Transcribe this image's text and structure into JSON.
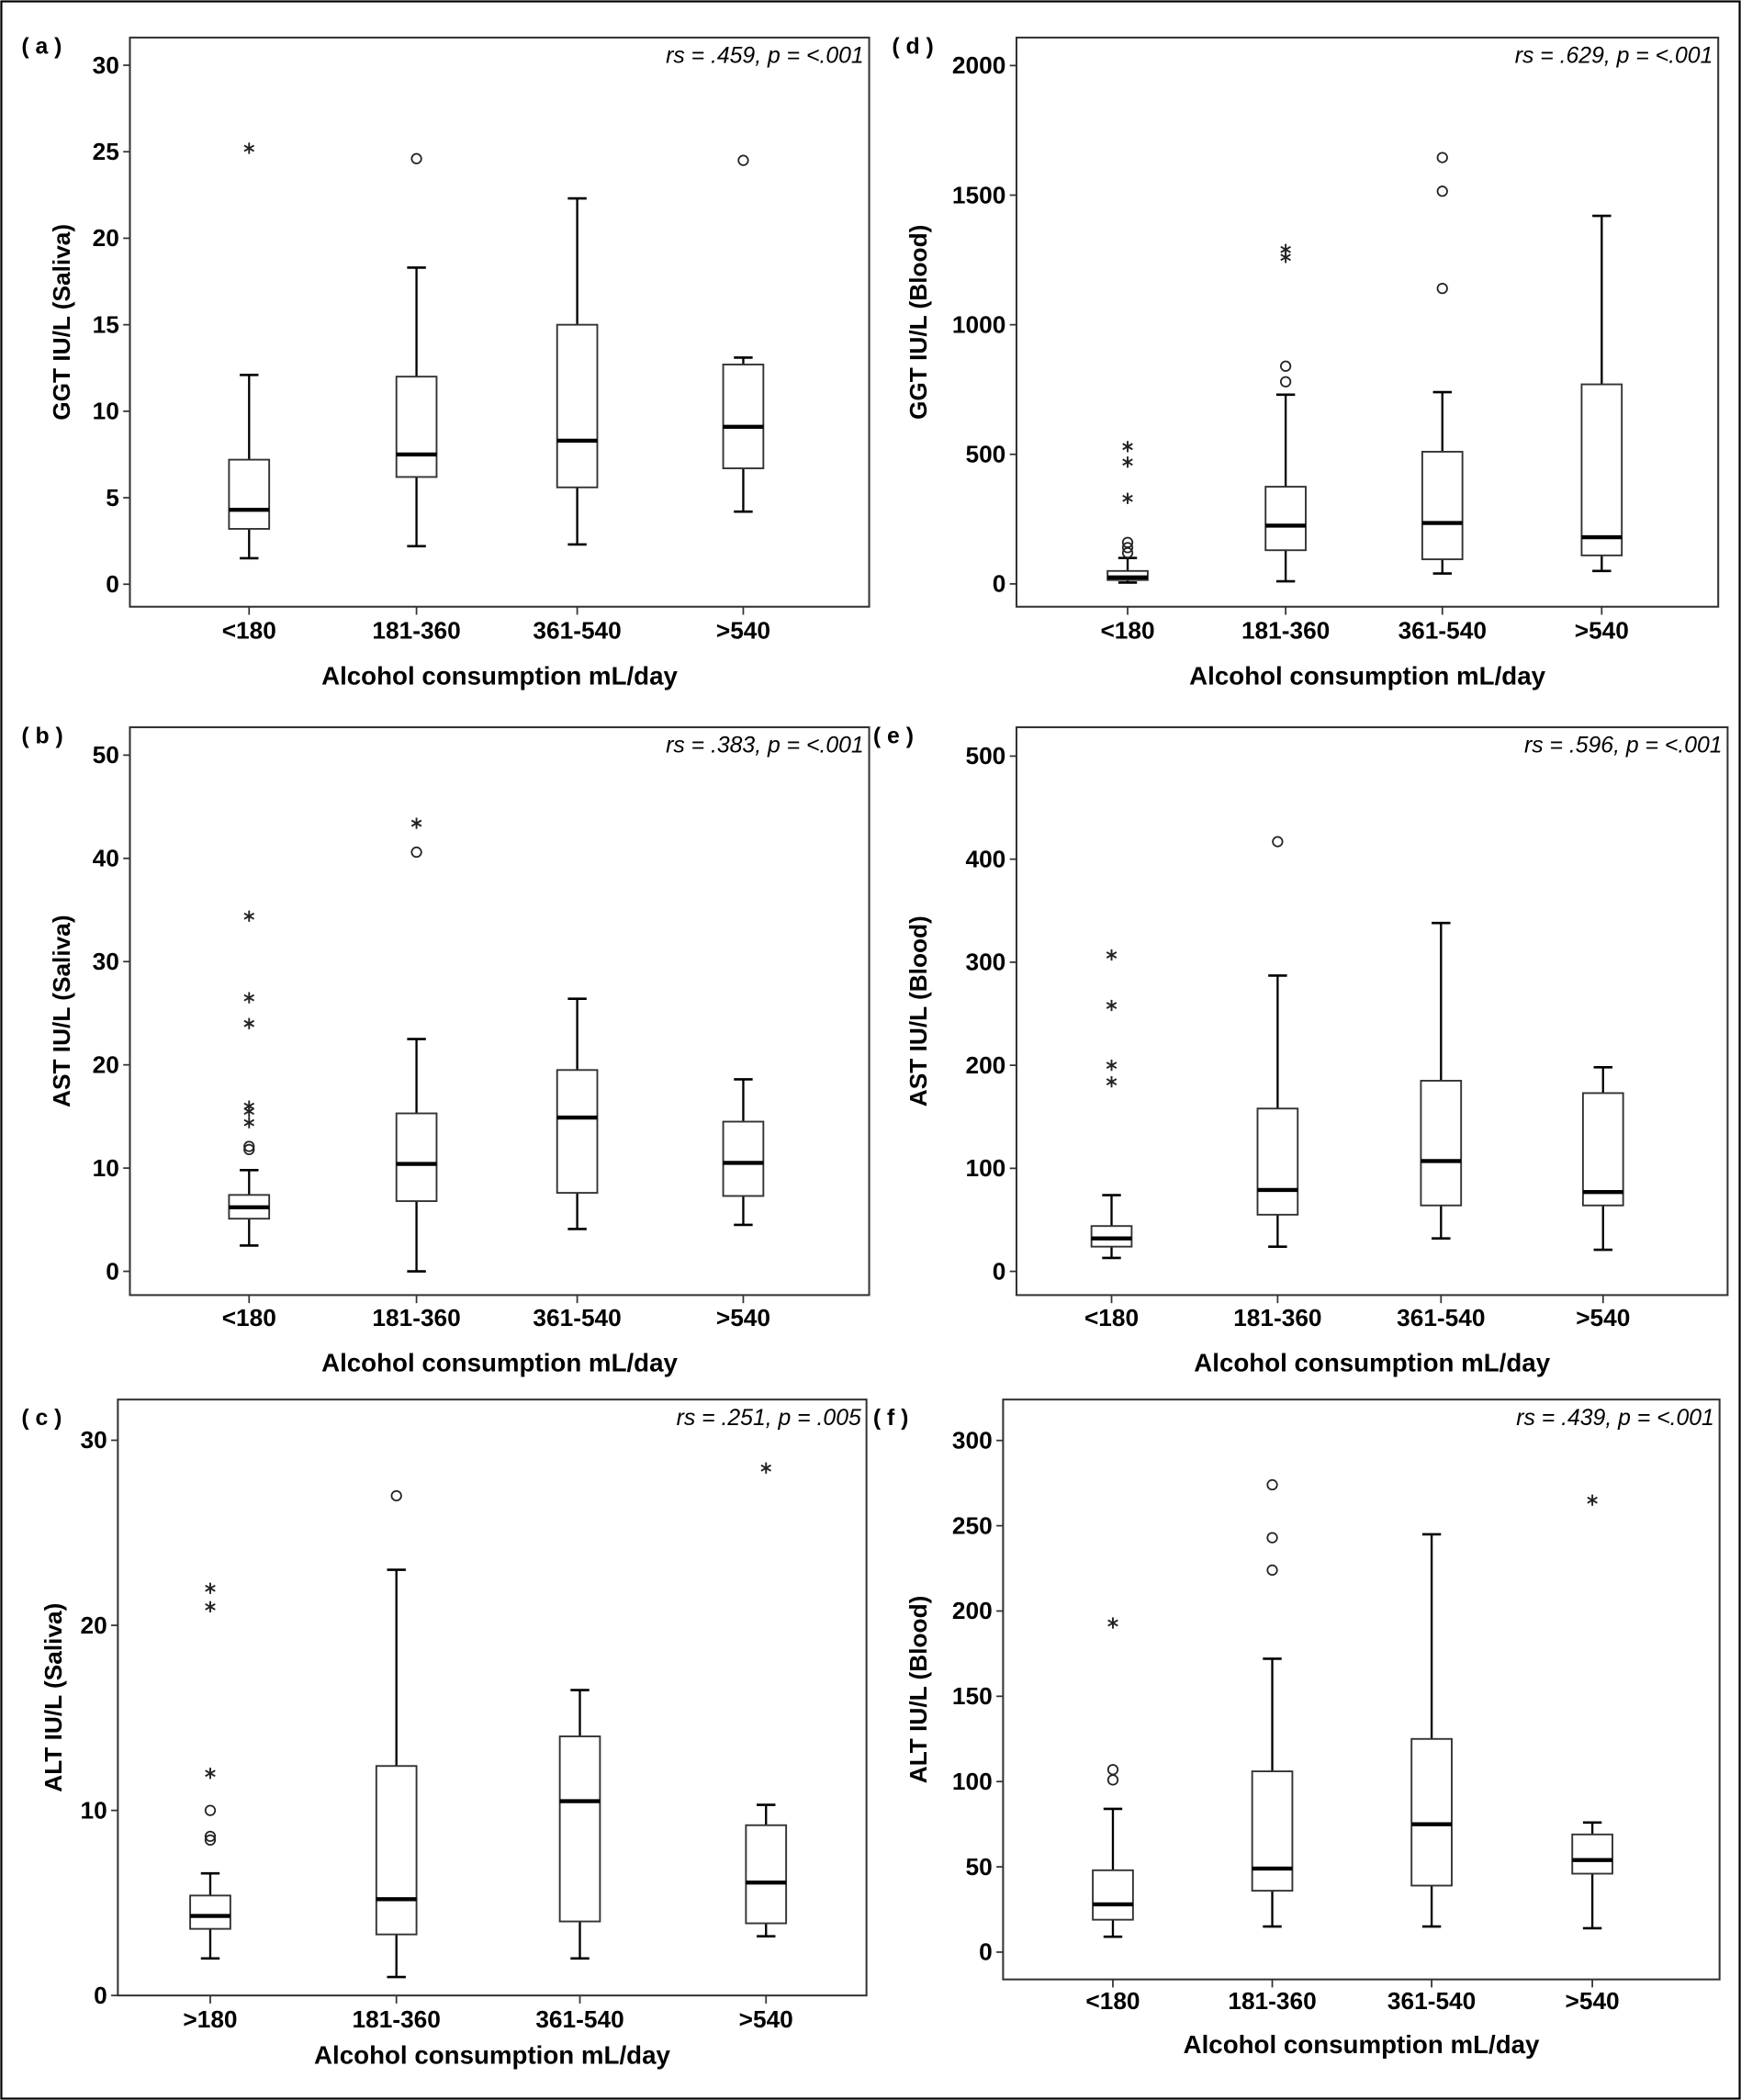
{
  "chart_data": [
    {
      "type": "box",
      "panel_label": "( a )",
      "annotation": "rs = .459, p = <.001",
      "ylabel": "GGT IU/L (Saliva)",
      "xlabel": "Alcohol consumption mL/day",
      "categories": [
        "<180",
        "181-360",
        "361-540",
        ">540"
      ],
      "ylim": [
        -1.3,
        31.6
      ],
      "yticks": [
        0,
        5,
        10,
        15,
        20,
        25,
        30
      ],
      "boxes": [
        {
          "whisker_low": 1.5,
          "q1": 3.2,
          "median": 4.3,
          "q3": 7.2,
          "whisker_high": 12.1,
          "outliers": [],
          "extremes": [
            25.2
          ]
        },
        {
          "whisker_low": 2.2,
          "q1": 6.2,
          "median": 7.5,
          "q3": 12.0,
          "whisker_high": 18.3,
          "outliers": [
            24.6
          ],
          "extremes": []
        },
        {
          "whisker_low": 2.3,
          "q1": 5.6,
          "median": 8.3,
          "q3": 15.0,
          "whisker_high": 22.3,
          "outliers": [],
          "extremes": []
        },
        {
          "whisker_low": 4.2,
          "q1": 6.7,
          "median": 9.1,
          "q3": 12.7,
          "whisker_high": 13.1,
          "outliers": [
            24.5
          ],
          "extremes": []
        }
      ]
    },
    {
      "type": "box",
      "panel_label": "( b )",
      "annotation": "rs = .383, p = <.001",
      "ylabel": "AST IU/L (Saliva)",
      "xlabel": "Alcohol consumption mL/day",
      "categories": [
        "<180",
        "181-360",
        "361-540",
        ">540"
      ],
      "ylim": [
        -2.3,
        52.7
      ],
      "yticks": [
        0,
        10,
        20,
        30,
        40,
        50
      ],
      "boxes": [
        {
          "whisker_low": 2.5,
          "q1": 5.1,
          "median": 6.2,
          "q3": 7.4,
          "whisker_high": 9.8,
          "outliers": [
            11.8,
            12.1
          ],
          "extremes": [
            14.4,
            15.5,
            16.0,
            24.0,
            26.5,
            34.4
          ]
        },
        {
          "whisker_low": 0,
          "q1": 6.8,
          "median": 10.4,
          "q3": 15.3,
          "whisker_high": 22.5,
          "outliers": [
            40.6
          ],
          "extremes": [
            43.4
          ]
        },
        {
          "whisker_low": 4.1,
          "q1": 7.6,
          "median": 14.9,
          "q3": 19.5,
          "whisker_high": 26.4,
          "outliers": [],
          "extremes": []
        },
        {
          "whisker_low": 4.5,
          "q1": 7.3,
          "median": 10.5,
          "q3": 14.5,
          "whisker_high": 18.6,
          "outliers": [],
          "extremes": []
        }
      ]
    },
    {
      "type": "box",
      "panel_label": "( c )",
      "annotation": "rs = .251, p =  .005",
      "ylabel": "ALT IU/L (Saliva)",
      "xlabel": "Alcohol consumption mL/day",
      "categories": [
        ">180",
        "181-360",
        "361-540",
        ">540"
      ],
      "ylim": [
        0,
        32.2
      ],
      "yticks": [
        0,
        10,
        20,
        30
      ],
      "boxes": [
        {
          "whisker_low": 2.0,
          "q1": 3.6,
          "median": 4.3,
          "q3": 5.4,
          "whisker_high": 6.6,
          "outliers": [
            8.4,
            8.6,
            10.0
          ],
          "extremes": [
            12.0,
            21.0,
            22.0
          ]
        },
        {
          "whisker_low": 1.0,
          "q1": 3.3,
          "median": 5.2,
          "q3": 12.4,
          "whisker_high": 23.0,
          "outliers": [
            27.0
          ],
          "extremes": []
        },
        {
          "whisker_low": 2.0,
          "q1": 4.0,
          "median": 10.5,
          "q3": 14.0,
          "whisker_high": 16.5,
          "outliers": [],
          "extremes": []
        },
        {
          "whisker_low": 3.2,
          "q1": 3.9,
          "median": 6.1,
          "q3": 9.2,
          "whisker_high": 10.3,
          "outliers": [],
          "extremes": [
            28.5
          ]
        }
      ]
    },
    {
      "type": "box",
      "panel_label": "( d )",
      "annotation": "rs = .629, p  = <.001",
      "ylabel": "GGT IU/L (Blood)",
      "xlabel": "Alcohol consumption mL/day",
      "categories": [
        "<180",
        "181-360",
        "361-540",
        ">540"
      ],
      "ylim": [
        -88,
        2108
      ],
      "yticks": [
        0,
        500,
        1000,
        1500,
        2000
      ],
      "boxes": [
        {
          "whisker_low": 5,
          "q1": 15,
          "median": 25,
          "q3": 50,
          "whisker_high": 100,
          "outliers": [
            120,
            140,
            160
          ],
          "extremes": [
            330,
            470,
            530
          ]
        },
        {
          "whisker_low": 10,
          "q1": 130,
          "median": 225,
          "q3": 375,
          "whisker_high": 730,
          "outliers": [
            780,
            840
          ],
          "extremes": [
            1260,
            1290
          ]
        },
        {
          "whisker_low": 40,
          "q1": 95,
          "median": 235,
          "q3": 510,
          "whisker_high": 740,
          "outliers": [
            1140,
            1515,
            1645
          ],
          "extremes": []
        },
        {
          "whisker_low": 50,
          "q1": 110,
          "median": 180,
          "q3": 770,
          "whisker_high": 1420,
          "outliers": [],
          "extremes": []
        }
      ]
    },
    {
      "type": "box",
      "panel_label": "( e )",
      "annotation": "rs = .596, p = <.001",
      "ylabel": "AST IU/L (Blood)",
      "xlabel": "Alcohol consumption mL/day",
      "categories": [
        "<180",
        "181-360",
        "361-540",
        ">540"
      ],
      "ylim": [
        -23,
        528
      ],
      "yticks": [
        0,
        100,
        200,
        300,
        400,
        500
      ],
      "boxes": [
        {
          "whisker_low": 13,
          "q1": 24,
          "median": 32,
          "q3": 44,
          "whisker_high": 74,
          "outliers": [],
          "extremes": [
            184,
            200,
            258,
            307
          ]
        },
        {
          "whisker_low": 24,
          "q1": 55,
          "median": 79,
          "q3": 158,
          "whisker_high": 287,
          "outliers": [
            417
          ],
          "extremes": []
        },
        {
          "whisker_low": 32,
          "q1": 64,
          "median": 107,
          "q3": 185,
          "whisker_high": 338,
          "outliers": [],
          "extremes": []
        },
        {
          "whisker_low": 21,
          "q1": 64,
          "median": 77,
          "q3": 173,
          "whisker_high": 198,
          "outliers": [],
          "extremes": []
        }
      ]
    },
    {
      "type": "box",
      "panel_label": "( f )",
      "annotation": "rs = .439, p = <.001",
      "ylabel": "ALT IU/L (Blood)",
      "xlabel": "Alcohol consumption mL/day",
      "categories": [
        "<180",
        "181-360",
        "361-540",
        ">540"
      ],
      "ylim": [
        -16,
        324
      ],
      "yticks": [
        0,
        50,
        100,
        150,
        200,
        250,
        300
      ],
      "boxes": [
        {
          "whisker_low": 9,
          "q1": 19,
          "median": 28,
          "q3": 48,
          "whisker_high": 84,
          "outliers": [
            101,
            107
          ],
          "extremes": [
            193
          ]
        },
        {
          "whisker_low": 15,
          "q1": 36,
          "median": 49,
          "q3": 106,
          "whisker_high": 172,
          "outliers": [
            224,
            243,
            274
          ],
          "extremes": []
        },
        {
          "whisker_low": 15,
          "q1": 39,
          "median": 75,
          "q3": 125,
          "whisker_high": 245,
          "outliers": [],
          "extremes": []
        },
        {
          "whisker_low": 14,
          "q1": 46,
          "median": 54,
          "q3": 69,
          "whisker_high": 76,
          "outliers": [],
          "extremes": [
            265
          ]
        }
      ]
    }
  ]
}
